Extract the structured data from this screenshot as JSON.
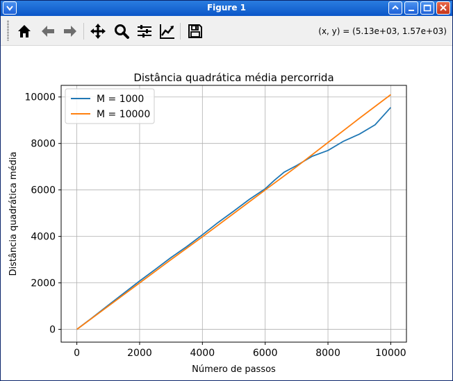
{
  "window": {
    "title": "Figure 1",
    "icons": [
      "menu-icon",
      "minimize-icon",
      "maximize-icon",
      "restore-icon",
      "close-icon"
    ]
  },
  "toolbar": {
    "tools": [
      "home-icon",
      "back-arrow-icon",
      "forward-arrow-icon",
      "pan-icon",
      "zoom-icon",
      "configure-subplots-icon",
      "edit-axis-icon",
      "save-icon"
    ],
    "coords": "(x, y) = (5.13e+03, 1.57e+03)"
  },
  "chart_data": {
    "type": "line",
    "title": "Distância quadrática média percorrida",
    "xlabel": "Número de passos",
    "ylabel": "Distância quadrática média",
    "xlim": [
      -500,
      10500
    ],
    "ylim": [
      -550,
      10500
    ],
    "xticks": [
      0,
      2000,
      4000,
      6000,
      8000,
      10000
    ],
    "yticks": [
      0,
      2000,
      4000,
      6000,
      8000,
      10000
    ],
    "xtick_labels": [
      "0",
      "2000",
      "4000",
      "6000",
      "8000",
      "10000"
    ],
    "ytick_labels": [
      "0",
      "2000",
      "4000",
      "6000",
      "8000",
      "10000"
    ],
    "grid": true,
    "legend_position": "upper left",
    "series": [
      {
        "name": "M = 1000",
        "color": "#1f77b4",
        "x": [
          0,
          500,
          1000,
          1500,
          2000,
          2500,
          3000,
          3500,
          4000,
          4500,
          5000,
          5500,
          6000,
          6300,
          6600,
          7000,
          7500,
          8000,
          8500,
          9000,
          9500,
          10000
        ],
        "y": [
          0,
          510,
          1040,
          1560,
          2080,
          2580,
          3090,
          3560,
          4070,
          4600,
          5090,
          5600,
          6050,
          6420,
          6760,
          7050,
          7450,
          7700,
          8100,
          8400,
          8800,
          9550
        ]
      },
      {
        "name": "M = 10000",
        "color": "#ff7f0e",
        "x": [
          0,
          1000,
          2000,
          3000,
          4000,
          5000,
          6000,
          7000,
          8000,
          9000,
          10000
        ],
        "y": [
          0,
          1000,
          2000,
          3000,
          3980,
          4990,
          6000,
          7000,
          8040,
          9080,
          10100
        ]
      }
    ]
  }
}
